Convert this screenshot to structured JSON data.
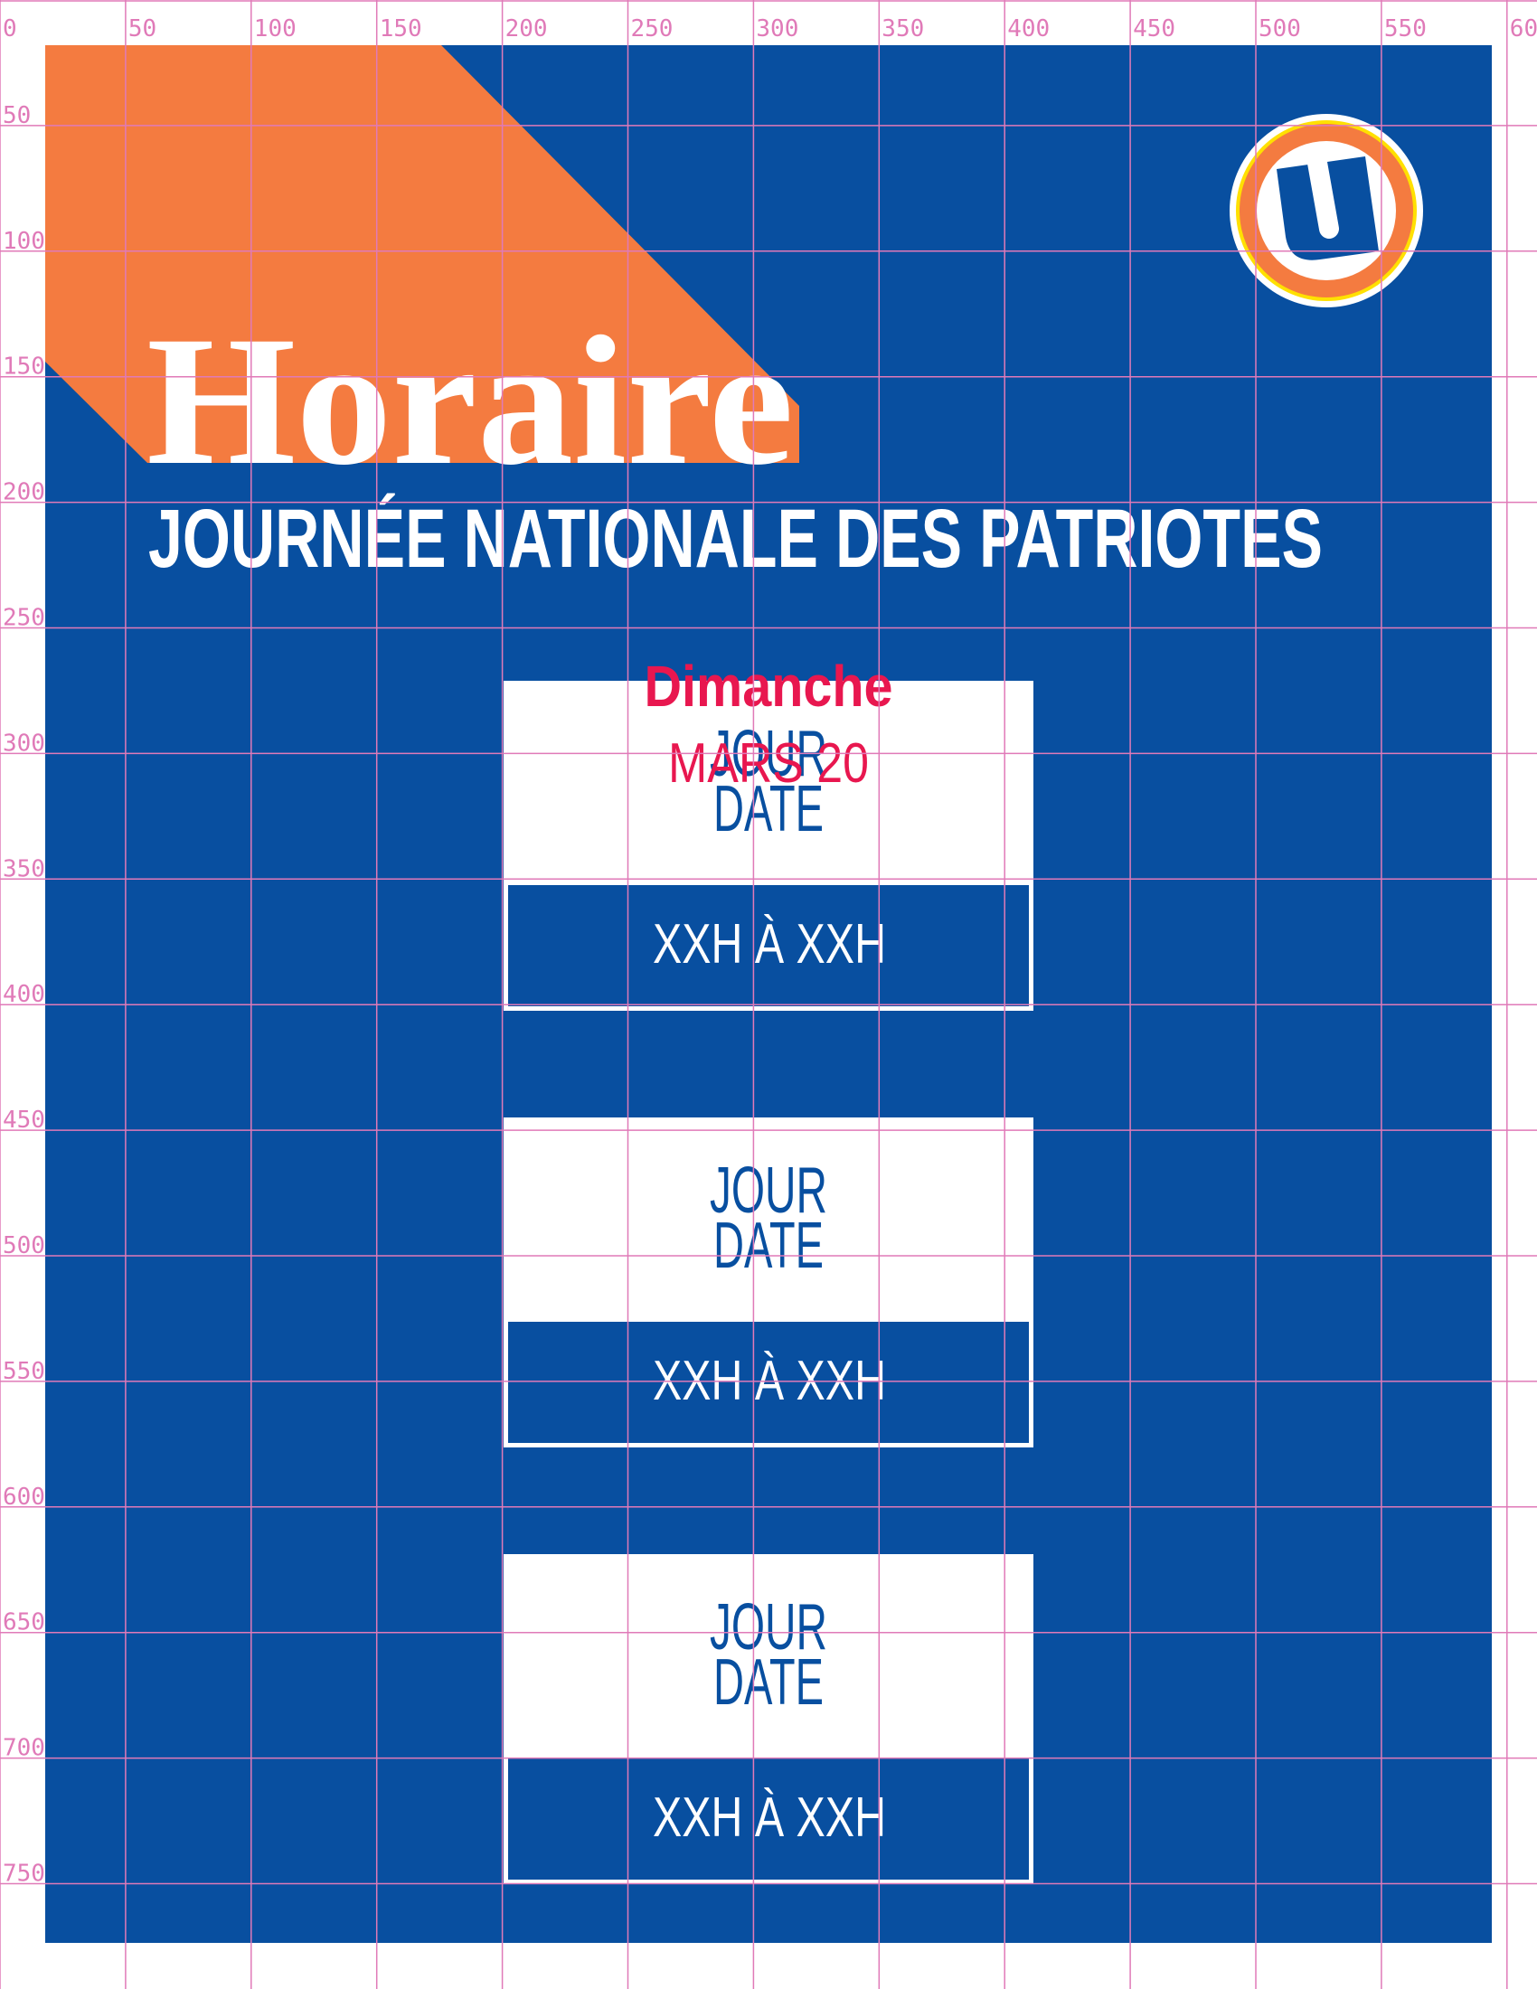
{
  "colors": {
    "blue": "#084fa0",
    "orange": "#f47b40",
    "pink": "#e8174f",
    "yellow": "#ffe000",
    "white": "#ffffff",
    "grid": "#e07ab8"
  },
  "logo": {
    "icon": "u-logo-icon",
    "letter": "U"
  },
  "header": {
    "title": "Horaire",
    "subtitle": "JOURNÉE NATIONALE DES PATRIOTES"
  },
  "highlight": {
    "day": "Dimanche",
    "date": "MARS 20"
  },
  "schedule": [
    {
      "day": "JOUR",
      "date": "DATE",
      "hours": "XXH À XXH"
    },
    {
      "day": "JOUR",
      "date": "DATE",
      "hours": "XXH À XXH"
    },
    {
      "day": "JOUR",
      "date": "DATE",
      "hours": "XXH À XXH"
    }
  ],
  "grid": {
    "x_labels": [
      "0",
      "50",
      "100",
      "150",
      "200",
      "250",
      "300",
      "350",
      "400",
      "450",
      "500",
      "550",
      "60"
    ],
    "y_labels": [
      "50",
      "100",
      "150",
      "200",
      "250",
      "300",
      "350",
      "400",
      "450",
      "500",
      "550",
      "600",
      "650",
      "700",
      "750"
    ]
  }
}
